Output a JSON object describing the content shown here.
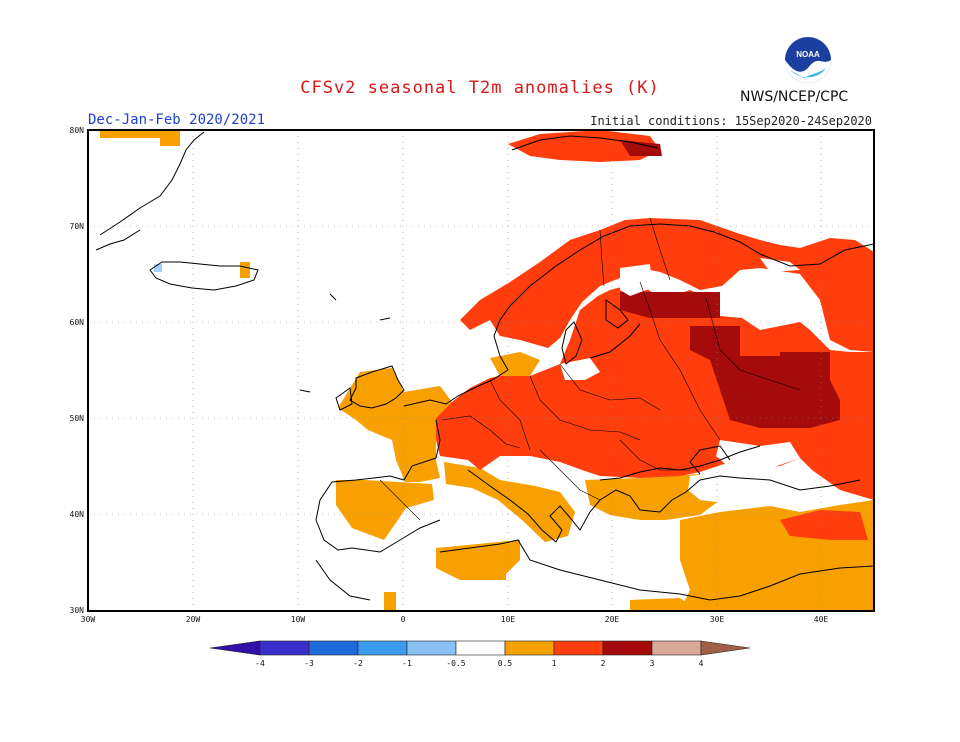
{
  "header": {
    "title": "CFSv2 seasonal T2m anomalies (K)",
    "period": "Dec-Jan-Feb 2020/2021",
    "initial_conditions": "Initial conditions: 15Sep2020-24Sep2020",
    "agency": "NWS/NCEP/CPC",
    "logo_text": "NOAA"
  },
  "map": {
    "region": "Europe",
    "lon_range": [
      "30W",
      "45E"
    ],
    "lat_range": [
      "30N",
      "80N"
    ],
    "lat_labels": [
      "80N",
      "70N",
      "60N",
      "50N",
      "40N",
      "30N"
    ],
    "lon_labels": [
      "30W",
      "20W",
      "10W",
      "0",
      "10E",
      "20E",
      "30E",
      "40E"
    ]
  },
  "legend": {
    "values": [
      "-4",
      "-3",
      "-2",
      "-1",
      "-0.5",
      "0.5",
      "1",
      "2",
      "3",
      "4"
    ],
    "colors": [
      "#3010a8",
      "#3050d0",
      "#3a7fe8",
      "#64a8f0",
      "#a6d0f8",
      "#ffffff",
      "#f5a000",
      "#ff3c10",
      "#b00808",
      "#a06048",
      "#d8a898",
      "#b08070"
    ]
  },
  "anomaly_colors": {
    "neutral": "#ffffff",
    "band_0_5_to_1": "#f7a000",
    "band_1_to_2": "#ff3d0d",
    "band_2_to_3": "#a50b0b",
    "band_3_to_4": "#d8a898",
    "cold_neg_0_5": "#a6d0f8"
  }
}
